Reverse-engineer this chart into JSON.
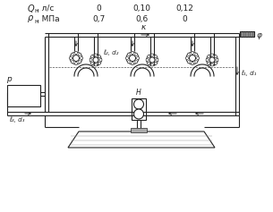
{
  "bg_color": "#ffffff",
  "line_color": "#222222",
  "table": {
    "row1_label": "Q",
    "row1_sub": "н",
    "row1_unit": ", л/с",
    "row1_vals": [
      "0",
      "0,10",
      "0,12"
    ],
    "row2_label": "ρ",
    "row2_sub": "н",
    "row2_unit": ", МПа",
    "row2_vals": [
      "0,7",
      "0,6",
      "0"
    ]
  },
  "labels": {
    "kappa": "κ",
    "phi": "φ",
    "p": "p",
    "H": "H",
    "l1d1": "ℓ₁, d₁",
    "l2d2": "ℓ₂, d₂",
    "l3d3": "ℓ₃, d₃"
  }
}
